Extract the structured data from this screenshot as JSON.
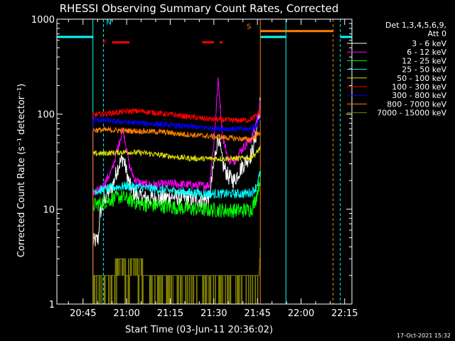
{
  "chart_data": {
    "type": "line",
    "title": "RHESSI Observing Summary Count Rates, Corrected",
    "xlabel": "Start Time (03-Jun-11 20:36:02)",
    "ylabel": "Corrected Count Rate (s⁻¹ detector⁻¹)",
    "y_scale": "log",
    "ylim": [
      1,
      1000
    ],
    "xlim_minutes": [
      0,
      101.5
    ],
    "x_ticks": [
      {
        "label": "20:45",
        "minute": 9
      },
      {
        "label": "21:00",
        "minute": 24
      },
      {
        "label": "21:15",
        "minute": 39
      },
      {
        "label": "21:30",
        "minute": 54
      },
      {
        "label": "21:45",
        "minute": 69
      },
      {
        "label": "22:00",
        "minute": 84
      },
      {
        "label": "22:15",
        "minute": 99
      }
    ],
    "y_ticks": [
      {
        "label": "1",
        "value": 1
      },
      {
        "label": "10",
        "value": 10
      },
      {
        "label": "100",
        "value": 100
      },
      {
        "label": "1000",
        "value": 1000
      }
    ],
    "legend_header": [
      "Det 1,3,4,5,6,9,",
      "Att 0"
    ],
    "legend_position": "top-right",
    "timestamp": "17-Oct-2021 15:32",
    "data_window": [
      12.4,
      70.0
    ],
    "night": [
      [
        0,
        12.4
      ],
      [
        70,
        78.8
      ],
      [
        97.5,
        101.5
      ]
    ],
    "flag_markers": [
      {
        "text": "N",
        "minute": 16,
        "color": "#00ffff"
      },
      {
        "text": "F",
        "minute": 16.5,
        "color": "#ff0000"
      },
      {
        "text": "S",
        "minute": 68,
        "color": "#ff8000"
      }
    ],
    "flare_flag_intervals": [
      [
        19,
        25
      ],
      [
        50,
        54
      ],
      [
        56,
        57
      ]
    ],
    "saa_interval": [
      70,
      95
    ],
    "series": [
      {
        "name": "3 - 6 keV",
        "color": "#ffffff",
        "x": [
          12.4,
          14.2,
          14.8,
          17,
          19,
          21,
          22.8,
          25,
          27,
          30,
          35,
          40,
          45,
          50,
          52.5,
          54,
          55.5,
          57,
          59,
          61,
          63,
          65,
          67,
          68.5,
          70
        ],
        "y": [
          4.5,
          4.8,
          9,
          14,
          17,
          28,
          35,
          18,
          14,
          13,
          13,
          13.5,
          13,
          12.5,
          13,
          30,
          60,
          30,
          22,
          20,
          26,
          32,
          38,
          60,
          135
        ]
      },
      {
        "name": "6 - 12 keV",
        "color": "#ff00ff",
        "x": [
          12.4,
          15,
          17,
          19,
          21,
          22.8,
          25,
          27,
          30,
          35,
          40,
          45,
          50,
          52.5,
          54,
          55.5,
          57,
          59,
          61,
          63,
          65,
          67,
          68.5,
          70
        ],
        "y": [
          15,
          16,
          20,
          26,
          45,
          70,
          28,
          20,
          18,
          18,
          18.5,
          18,
          17.5,
          18,
          50,
          230,
          60,
          33,
          32,
          40,
          48,
          55,
          80,
          130
        ]
      },
      {
        "name": "12 - 25 keV",
        "color": "#00ff00",
        "x": [
          12.4,
          15,
          18,
          22,
          25,
          28,
          32,
          36,
          40,
          44,
          48,
          52,
          55,
          58,
          61,
          64,
          67,
          68.5,
          70
        ],
        "y": [
          11,
          11.5,
          12.5,
          13.5,
          12.5,
          11.5,
          11,
          10.8,
          10.5,
          10.2,
          10,
          9.8,
          9.8,
          9.7,
          9.7,
          9.7,
          10,
          13,
          22
        ]
      },
      {
        "name": "25 - 50 keV",
        "color": "#00ffff",
        "x": [
          12.4,
          16,
          20,
          24,
          28,
          32,
          36,
          40,
          44,
          48,
          52,
          56,
          60,
          64,
          67,
          68.5,
          70
        ],
        "y": [
          15.5,
          16,
          17,
          17.5,
          17,
          16.5,
          16,
          15.5,
          15,
          14.8,
          14.5,
          14.5,
          14.5,
          14.5,
          15,
          17,
          24
        ]
      },
      {
        "name": "50 - 100 keV",
        "color": "#dddd00",
        "x": [
          12.4,
          18,
          24,
          30,
          36,
          42,
          48,
          54,
          60,
          66,
          68.5,
          70
        ],
        "y": [
          38,
          39,
          40,
          39,
          37,
          35,
          34,
          34,
          34,
          34.5,
          38,
          45
        ]
      },
      {
        "name": "100 - 300 keV",
        "color": "#ff0000",
        "x": [
          12.4,
          18,
          24,
          28,
          32,
          38,
          44,
          50,
          56,
          62,
          66,
          68.5,
          70
        ],
        "y": [
          98,
          102,
          107,
          108,
          105,
          100,
          95,
          90,
          87,
          86,
          87,
          95,
          110
        ]
      },
      {
        "name": "300 - 800 keV",
        "color": "#0000ff",
        "x": [
          12.4,
          18,
          24,
          30,
          36,
          42,
          48,
          54,
          60,
          66,
          68.5,
          70
        ],
        "y": [
          88,
          85,
          82,
          80,
          78,
          75,
          73,
          71,
          70,
          69,
          75,
          90
        ]
      },
      {
        "name": "800 - 7000 keV",
        "color": "#ff8000",
        "x": [
          12.4,
          18,
          24,
          30,
          36,
          42,
          48,
          54,
          60,
          66,
          68.5,
          70
        ],
        "y": [
          68,
          68,
          67,
          66,
          65,
          62,
          60,
          58,
          56,
          54,
          58,
          65
        ]
      },
      {
        "name": "7000 - 15000 keV",
        "color": "#808000",
        "x": [
          12.4,
          13,
          24,
          30,
          34,
          48,
          60,
          68,
          69.5,
          70
        ],
        "y": [
          1,
          2,
          2,
          2,
          2,
          2,
          2,
          2,
          2,
          5
        ],
        "note": "discrete count levels 1/2/3 (noisy block)"
      }
    ]
  }
}
